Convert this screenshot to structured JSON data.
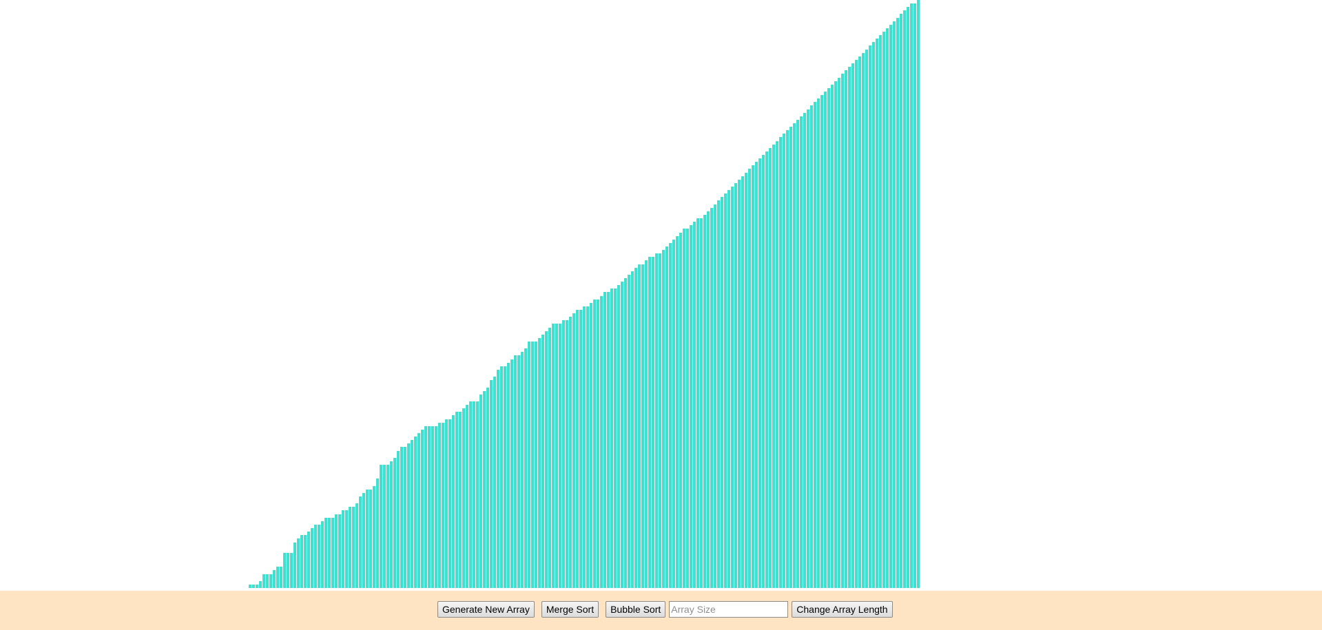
{
  "colors": {
    "bar": "#40e0d0",
    "controls_background": "#ffe4c4",
    "page_background": "#ffffff"
  },
  "visualizer": {
    "array": [
      1,
      1,
      1,
      2,
      4,
      4,
      4,
      5,
      6,
      6,
      10,
      10,
      10,
      13,
      14,
      15,
      15,
      16,
      17,
      18,
      18,
      19,
      20,
      20,
      20,
      21,
      21,
      22,
      22,
      23,
      23,
      24,
      26,
      27,
      28,
      28,
      29,
      31,
      35,
      35,
      35,
      36,
      37,
      39,
      40,
      40,
      41,
      42,
      43,
      44,
      45,
      46,
      46,
      46,
      46,
      47,
      47,
      48,
      48,
      49,
      50,
      50,
      51,
      52,
      53,
      53,
      53,
      55,
      56,
      57,
      59,
      60,
      62,
      63,
      63,
      64,
      65,
      66,
      66,
      67,
      68,
      70,
      70,
      70,
      71,
      72,
      73,
      74,
      75,
      75,
      75,
      76,
      76,
      77,
      78,
      79,
      79,
      80,
      80,
      81,
      82,
      82,
      83,
      84,
      84,
      85,
      85,
      86,
      87,
      88,
      89,
      90,
      91,
      92,
      92,
      93,
      94,
      94,
      95,
      95,
      96,
      97,
      98,
      99,
      100,
      101,
      102,
      102,
      103,
      104,
      105,
      105,
      106,
      107,
      108,
      109,
      110,
      111,
      112,
      113,
      114,
      115,
      116,
      117,
      118,
      119,
      120,
      121,
      122,
      123,
      124,
      125,
      126,
      127,
      128,
      129,
      130,
      131,
      132,
      133,
      134,
      135,
      136,
      137,
      138,
      139,
      140,
      141,
      142,
      143,
      144,
      145,
      146,
      147,
      148,
      149,
      150,
      151,
      152,
      153,
      154,
      155,
      156,
      157,
      158,
      159,
      160,
      161,
      162,
      163,
      164,
      165,
      166,
      166,
      167
    ]
  },
  "controls": {
    "generate_label": "Generate New Array",
    "merge_sort_label": "Merge Sort",
    "bubble_sort_label": "Bubble Sort",
    "array_size_value": "",
    "array_size_placeholder": "Array Size",
    "change_length_label": "Change Array Length"
  }
}
